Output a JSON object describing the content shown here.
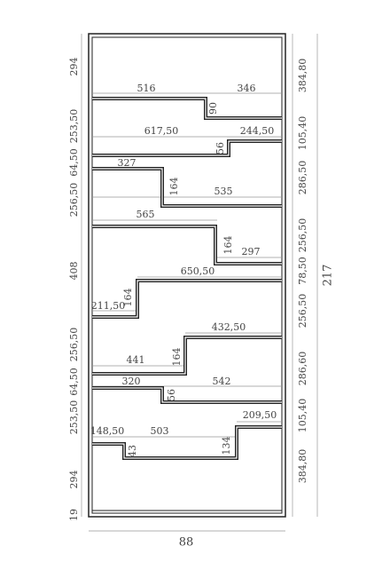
{
  "left_dimensions": [
    "294",
    "253,50",
    "64,50",
    "256,50",
    "408",
    "256,50",
    "64,50",
    "253,50",
    "294",
    "19"
  ],
  "right_dimensions": [
    "384,80",
    "105,40",
    "286,50",
    "256,50",
    "78,50",
    "256,50",
    "286,60",
    "105,40",
    "384,80"
  ],
  "overall_height": "217",
  "overall_width": "88",
  "shelf_labels": [
    [
      "516",
      "346",
      "90"
    ],
    [
      "617,50",
      "244,50",
      "56"
    ],
    [
      "327",
      "164",
      "535"
    ],
    [
      "565",
      "164",
      "297"
    ],
    [
      "650,50",
      "164",
      "211,50"
    ],
    [
      "432,50",
      "164",
      "441"
    ],
    [
      "320",
      "542",
      "56"
    ],
    [
      "209,50",
      "148,50",
      "503",
      "134",
      "43"
    ]
  ]
}
